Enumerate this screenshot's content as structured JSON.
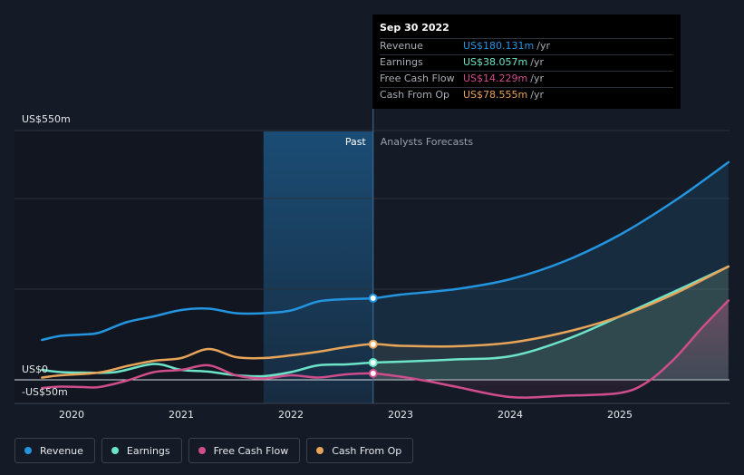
{
  "tooltip": {
    "date": "Sep 30 2022",
    "rows": [
      {
        "label": "Revenue",
        "value": "US$180.131m",
        "unit": "/yr",
        "color": "#2394df"
      },
      {
        "label": "Earnings",
        "value": "US$38.057m",
        "unit": "/yr",
        "color": "#6de4c8"
      },
      {
        "label": "Free Cash Flow",
        "value": "US$14.229m",
        "unit": "/yr",
        "color": "#cf4d8b"
      },
      {
        "label": "Cash From Op",
        "value": "US$78.555m",
        "unit": "/yr",
        "color": "#e8a55a"
      }
    ]
  },
  "periods": {
    "past": "Past",
    "forecast": "Analysts Forecasts"
  },
  "legend": [
    {
      "label": "Revenue",
      "color": "#2394df"
    },
    {
      "label": "Earnings",
      "color": "#6de4c8"
    },
    {
      "label": "Free Cash Flow",
      "color": "#cf4d8b"
    },
    {
      "label": "Cash From Op",
      "color": "#e8a55a"
    }
  ],
  "chart_data": {
    "type": "line",
    "title": "",
    "xlabel": "",
    "ylabel": "",
    "x_tick_labels": [
      "2020",
      "2021",
      "2022",
      "2023",
      "2024",
      "2025"
    ],
    "x_ticks": [
      2020,
      2021,
      2022,
      2023,
      2024,
      2025
    ],
    "y_tick_labels": [
      "US$550m",
      "US$0",
      "-US$50m"
    ],
    "y_ticks": [
      550,
      0,
      -50
    ],
    "ylim": [
      -50,
      550
    ],
    "xlim": [
      2019.73,
      2025.99
    ],
    "forecast_start": 2022.75,
    "highlight_start": 2021.75,
    "series": [
      {
        "name": "Revenue",
        "color": "#2394df",
        "points": [
          [
            2019.73,
            88
          ],
          [
            2019.9,
            97
          ],
          [
            2020.1,
            100
          ],
          [
            2020.25,
            104
          ],
          [
            2020.5,
            127
          ],
          [
            2020.75,
            140
          ],
          [
            2021.0,
            154
          ],
          [
            2021.25,
            157
          ],
          [
            2021.5,
            147
          ],
          [
            2021.75,
            147
          ],
          [
            2022.0,
            153
          ],
          [
            2022.25,
            173
          ],
          [
            2022.5,
            178
          ],
          [
            2022.75,
            180
          ],
          [
            2023.0,
            188
          ],
          [
            2023.5,
            200
          ],
          [
            2024.0,
            222
          ],
          [
            2024.5,
            262
          ],
          [
            2025.0,
            320
          ],
          [
            2025.5,
            395
          ],
          [
            2025.99,
            480
          ]
        ]
      },
      {
        "name": "Earnings",
        "color": "#6de4c8",
        "points": [
          [
            2019.73,
            22
          ],
          [
            2019.9,
            17
          ],
          [
            2020.1,
            16
          ],
          [
            2020.4,
            17
          ],
          [
            2020.75,
            35
          ],
          [
            2021.0,
            22
          ],
          [
            2021.25,
            18
          ],
          [
            2021.5,
            10
          ],
          [
            2021.75,
            8
          ],
          [
            2022.0,
            17
          ],
          [
            2022.25,
            32
          ],
          [
            2022.5,
            34
          ],
          [
            2022.75,
            38
          ],
          [
            2023.0,
            40
          ],
          [
            2023.5,
            45
          ],
          [
            2024.0,
            52
          ],
          [
            2024.5,
            88
          ],
          [
            2025.0,
            140
          ],
          [
            2025.5,
            195
          ],
          [
            2025.99,
            250
          ]
        ]
      },
      {
        "name": "Free Cash Flow",
        "color": "#cf4d8b",
        "points": [
          [
            2019.73,
            -18
          ],
          [
            2019.9,
            -15
          ],
          [
            2020.1,
            -16
          ],
          [
            2020.25,
            -16
          ],
          [
            2020.5,
            -2
          ],
          [
            2020.75,
            17
          ],
          [
            2021.0,
            22
          ],
          [
            2021.25,
            32
          ],
          [
            2021.5,
            10
          ],
          [
            2021.75,
            3
          ],
          [
            2022.0,
            10
          ],
          [
            2022.25,
            5
          ],
          [
            2022.5,
            12
          ],
          [
            2022.75,
            14
          ],
          [
            2023.0,
            7
          ],
          [
            2023.25,
            -3
          ],
          [
            2023.5,
            -15
          ],
          [
            2024.0,
            -38
          ],
          [
            2024.5,
            -35
          ],
          [
            2025.0,
            -29
          ],
          [
            2025.25,
            -5
          ],
          [
            2025.5,
            47
          ],
          [
            2025.75,
            115
          ],
          [
            2025.99,
            175
          ]
        ]
      },
      {
        "name": "Cash From Op",
        "color": "#e8a55a",
        "points": [
          [
            2019.73,
            5
          ],
          [
            2019.9,
            10
          ],
          [
            2020.25,
            16
          ],
          [
            2020.5,
            30
          ],
          [
            2020.75,
            42
          ],
          [
            2021.0,
            48
          ],
          [
            2021.25,
            68
          ],
          [
            2021.5,
            50
          ],
          [
            2021.75,
            48
          ],
          [
            2022.0,
            54
          ],
          [
            2022.25,
            62
          ],
          [
            2022.5,
            72
          ],
          [
            2022.75,
            79
          ],
          [
            2023.0,
            75
          ],
          [
            2023.5,
            74
          ],
          [
            2024.0,
            82
          ],
          [
            2024.5,
            105
          ],
          [
            2025.0,
            140
          ],
          [
            2025.5,
            190
          ],
          [
            2025.99,
            250
          ]
        ]
      }
    ],
    "markers": [
      {
        "series": "Revenue",
        "x": 2022.75,
        "y": 180.131
      },
      {
        "series": "Earnings",
        "x": 2022.75,
        "y": 38.057
      },
      {
        "series": "Free Cash Flow",
        "x": 2022.75,
        "y": 14.229
      },
      {
        "series": "Cash From Op",
        "x": 2022.75,
        "y": 78.555
      }
    ]
  }
}
